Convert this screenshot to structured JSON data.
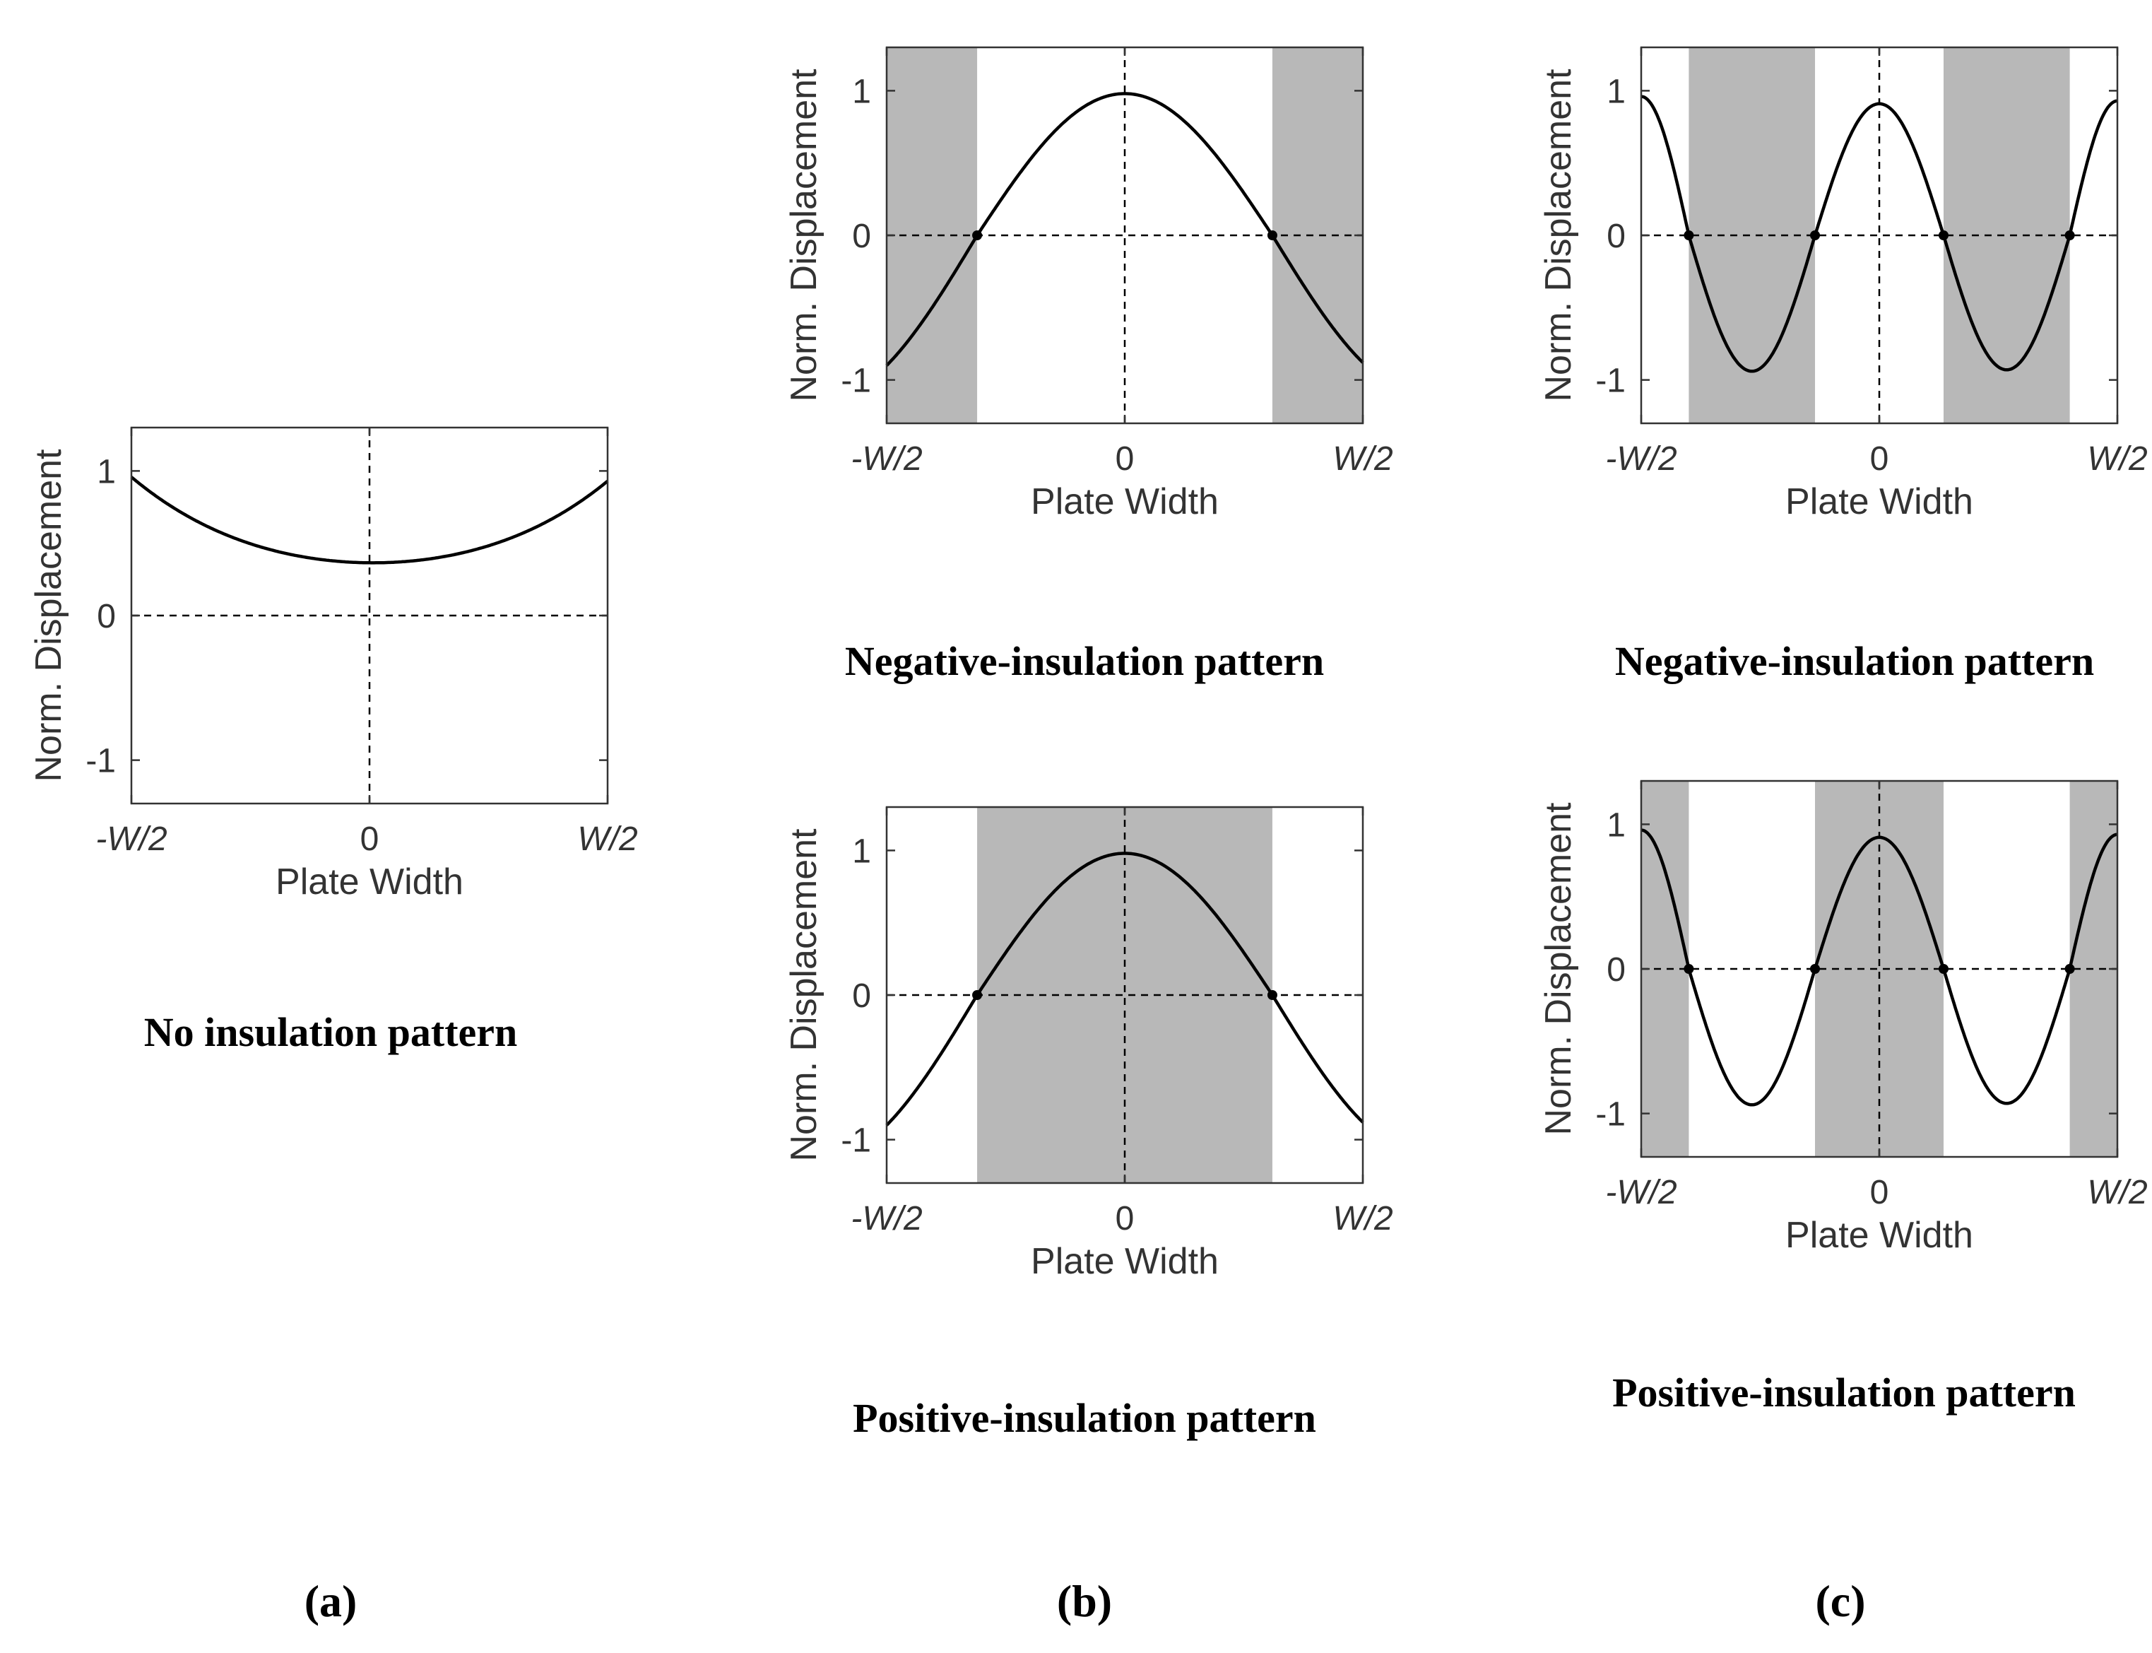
{
  "colors": {
    "shade": "#b8b8b8",
    "curve": "#000000",
    "axis": "#333333",
    "background": "#ffffff"
  },
  "chart_data": [
    {
      "id": "a",
      "type": "line",
      "panel_label": "(a)",
      "pattern_caption": "No insulation pattern",
      "xlabel": "Plate Width",
      "ylabel": "Norm. Displacement",
      "xticklabels": [
        "-W/2",
        "0",
        "W/2"
      ],
      "yticklabels": [
        "1",
        "0",
        "-1"
      ],
      "xlim": [
        -1,
        1
      ],
      "ylim": [
        -1.3,
        1.3
      ],
      "mode": "none",
      "curve_kind": "quartic",
      "x": [
        -1,
        -0.75,
        -0.5,
        -0.25,
        0,
        0.25,
        0.5,
        0.75,
        1
      ],
      "y": [
        0.96,
        0.67,
        0.5,
        0.4,
        0.36,
        0.39,
        0.49,
        0.65,
        0.93
      ],
      "shaded_intervals": [],
      "zero_crossings": []
    },
    {
      "id": "b-top",
      "type": "line",
      "panel_label": "(b)",
      "pattern_caption": "Negative-insulation pattern",
      "xlabel": "Plate Width",
      "ylabel": "Norm. Displacement",
      "xticklabels": [
        "-W/2",
        "0",
        "W/2"
      ],
      "yticklabels": [
        "1",
        "0",
        "-1"
      ],
      "xlim": [
        -1,
        1
      ],
      "ylim": [
        -1.3,
        1.3
      ],
      "mode": "single",
      "curve_kind": "cosine",
      "x": [
        -1,
        -0.62,
        0,
        0.62,
        1
      ],
      "y": [
        -0.9,
        0,
        0.98,
        0,
        -0.88
      ],
      "shaded_intervals": [
        [
          -1,
          -0.62
        ],
        [
          0.62,
          1
        ]
      ],
      "zero_crossings": [
        -0.62,
        0.62
      ]
    },
    {
      "id": "b-bottom",
      "type": "line",
      "panel_label": "",
      "pattern_caption": "Positive-insulation pattern",
      "xlabel": "Plate Width",
      "ylabel": "Norm. Displacement",
      "xticklabels": [
        "-W/2",
        "0",
        "W/2"
      ],
      "yticklabels": [
        "1",
        "0",
        "-1"
      ],
      "xlim": [
        -1,
        1
      ],
      "ylim": [
        -1.3,
        1.3
      ],
      "mode": "single",
      "curve_kind": "cosine",
      "x": [
        -1,
        -0.62,
        0,
        0.62,
        1
      ],
      "y": [
        -0.9,
        0,
        0.98,
        0,
        -0.88
      ],
      "shaded_intervals": [
        [
          -0.62,
          0.62
        ]
      ],
      "zero_crossings": [
        -0.62,
        0.62
      ]
    },
    {
      "id": "c-top",
      "type": "line",
      "panel_label": "(c)",
      "pattern_caption": "Negative-insulation pattern",
      "xlabel": "Plate Width",
      "ylabel": "Norm. Displacement",
      "xticklabels": [
        "-W/2",
        "0",
        "W/2"
      ],
      "yticklabels": [
        "1",
        "0",
        "-1"
      ],
      "xlim": [
        -1,
        1
      ],
      "ylim": [
        -1.3,
        1.3
      ],
      "mode": "double",
      "curve_kind": "cosine",
      "x": [
        -1,
        -0.8,
        -0.53,
        -0.27,
        0,
        0.27,
        0.53,
        0.8,
        1
      ],
      "y": [
        0.96,
        0,
        -0.94,
        0,
        0.91,
        0,
        -0.93,
        0,
        0.93
      ],
      "shaded_intervals": [
        [
          -0.8,
          -0.27
        ],
        [
          0.27,
          0.8
        ]
      ],
      "zero_crossings": [
        -0.8,
        -0.27,
        0.27,
        0.8
      ]
    },
    {
      "id": "c-bottom",
      "type": "line",
      "panel_label": "",
      "pattern_caption": "Positive-insulation pattern",
      "xlabel": "Plate Width",
      "ylabel": "Norm. Displacement",
      "xticklabels": [
        "-W/2",
        "0",
        "W/2"
      ],
      "yticklabels": [
        "1",
        "0",
        "-1"
      ],
      "xlim": [
        -1,
        1
      ],
      "ylim": [
        -1.3,
        1.3
      ],
      "mode": "double",
      "curve_kind": "cosine",
      "x": [
        -1,
        -0.8,
        -0.53,
        -0.27,
        0,
        0.27,
        0.53,
        0.8,
        1
      ],
      "y": [
        0.96,
        0,
        -0.94,
        0,
        0.91,
        0,
        -0.93,
        0,
        0.93
      ],
      "shaded_intervals": [
        [
          -1,
          -0.8
        ],
        [
          -0.27,
          0.27
        ],
        [
          0.8,
          1
        ]
      ],
      "zero_crossings": [
        -0.8,
        -0.27,
        0.27,
        0.8
      ]
    }
  ]
}
